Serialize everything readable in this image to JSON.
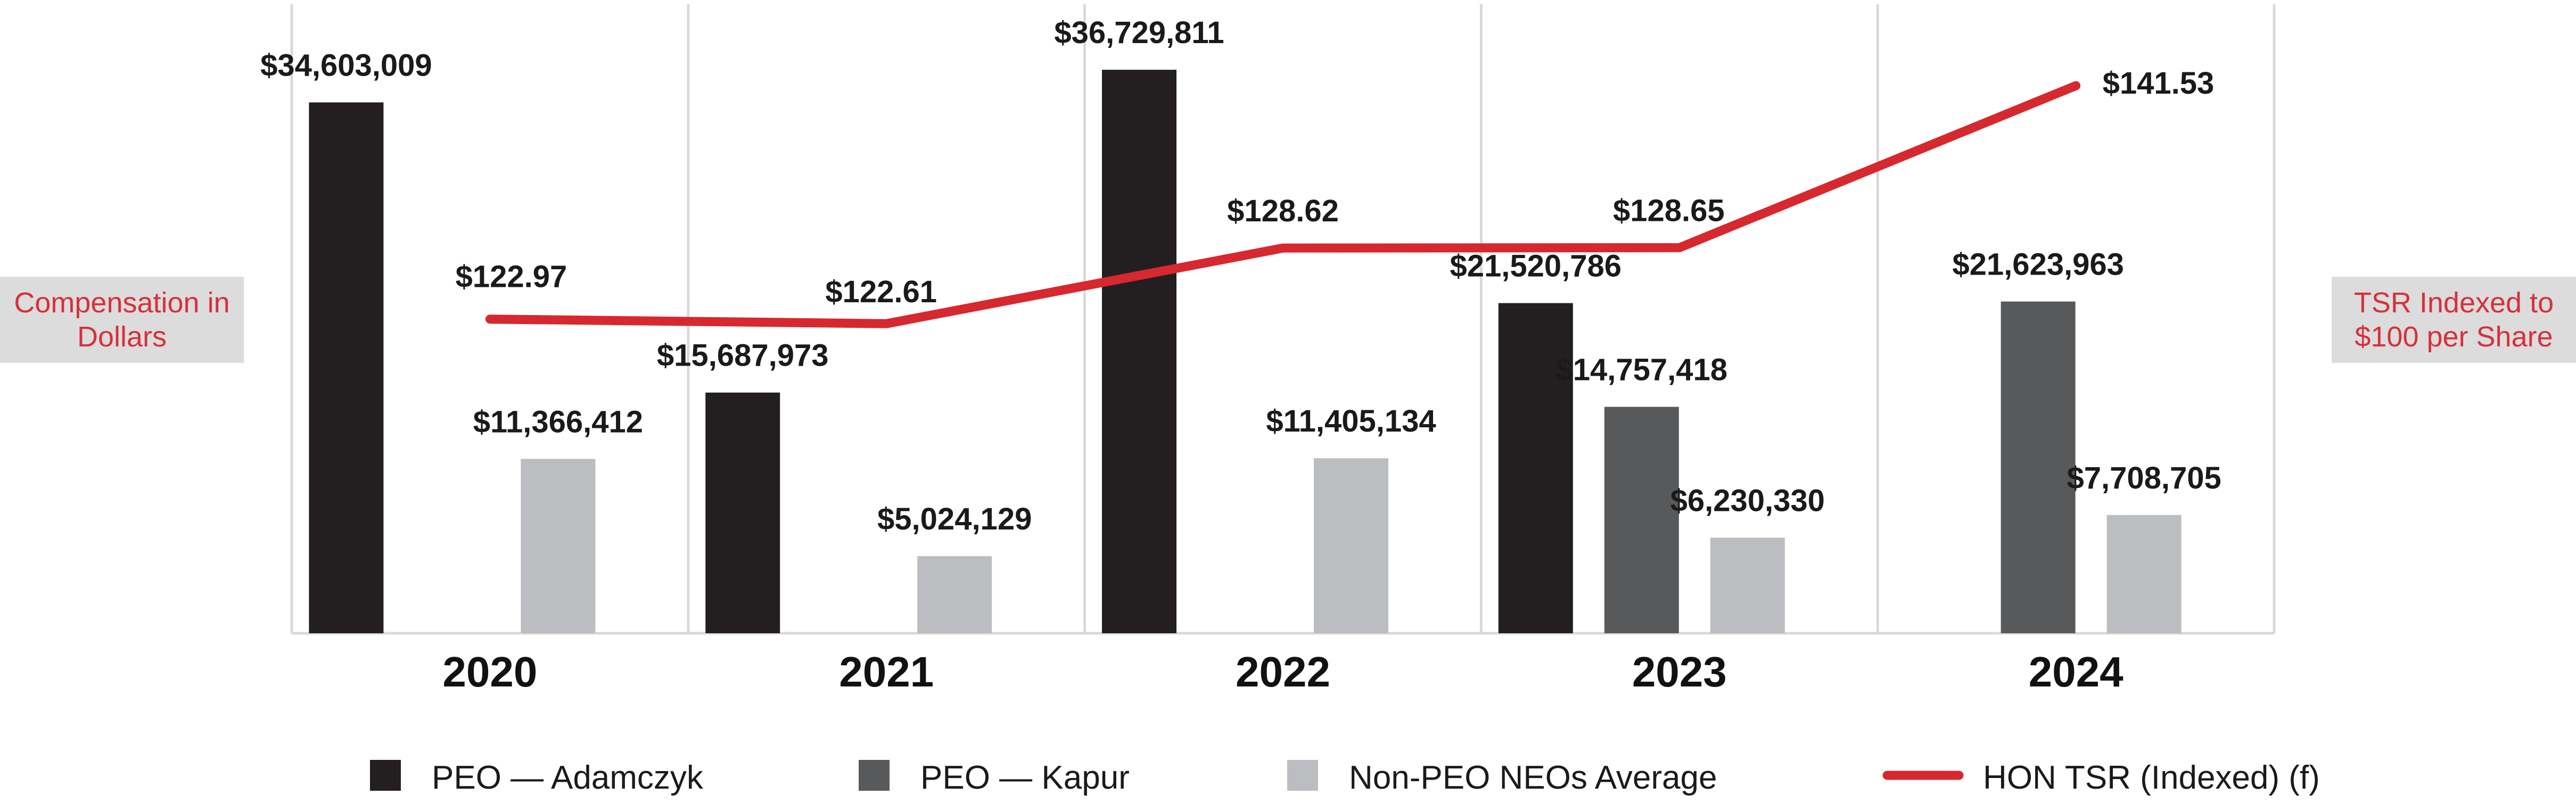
{
  "chart_data": {
    "type": "bar",
    "categories": [
      "2020",
      "2021",
      "2022",
      "2023",
      "2024"
    ],
    "series": [
      {
        "name": "PEO — Adamczyk",
        "color": "#231f20",
        "values": [
          34603009,
          15687973,
          36729811,
          21520786,
          null
        ],
        "labels": [
          "$34,603,009",
          "$15,687,973",
          "$36,729,811",
          "$21,520,786",
          ""
        ]
      },
      {
        "name": "PEO — Kapur",
        "color": "#58595b",
        "values": [
          null,
          null,
          null,
          14757418,
          21623963
        ],
        "labels": [
          "",
          "",
          "",
          "$14,757,418",
          "$21,623,963"
        ]
      },
      {
        "name": "Non-PEO NEOs Average",
        "color": "#bcbdc0",
        "values": [
          11366412,
          5024129,
          11405134,
          6230330,
          7708705
        ],
        "labels": [
          "$11,366,412",
          "$5,024,129",
          "$11,405,134",
          "$6,230,330",
          "$7,708,705"
        ]
      }
    ],
    "line_series": {
      "name": "HON TSR (Indexed) (f)",
      "color": "#d7282f",
      "values": [
        122.97,
        122.61,
        128.62,
        128.65,
        141.53
      ],
      "labels": [
        "$122.97",
        "$122.61",
        "$128.62",
        "$128.65",
        "$141.53"
      ]
    },
    "ylabel_left": "Compensation in\nDollars",
    "ylabel_right": "TSR Indexed to\n$100 per Share",
    "ylim_left": [
      0,
      41000000
    ],
    "ylim_right": [
      98,
      148
    ],
    "grid": "vertical separators",
    "legend": "bottom"
  }
}
